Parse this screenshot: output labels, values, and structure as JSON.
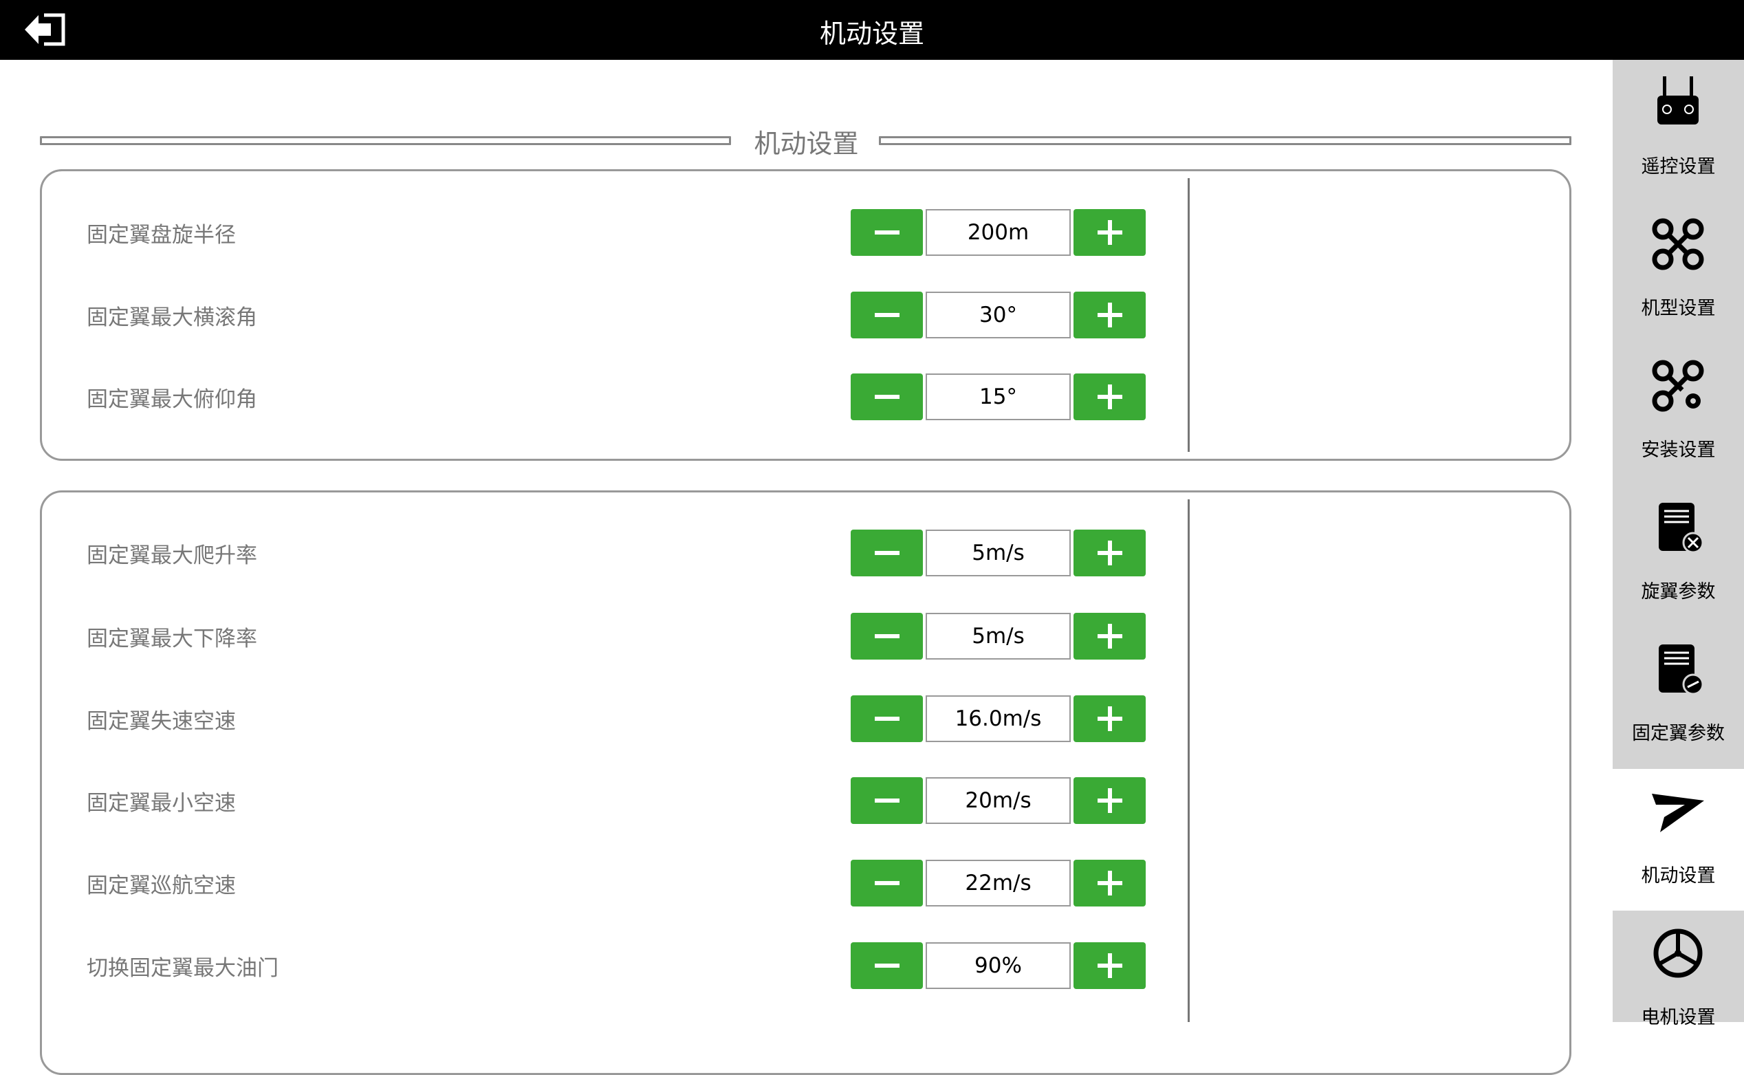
{
  "header": {
    "title": "机动设置",
    "back_icon": "exit-arrow-icon"
  },
  "section": {
    "title": "机动设置"
  },
  "colors": {
    "accent": "#3aaa35",
    "sidebar_bg": "#d3d3d3",
    "header_bg": "#000000"
  },
  "group1": [
    {
      "label": "固定翼盘旋半径",
      "value": "200m"
    },
    {
      "label": "固定翼最大横滚角",
      "value": "30°"
    },
    {
      "label": "固定翼最大俯仰角",
      "value": "15°"
    }
  ],
  "group2": [
    {
      "label": "固定翼最大爬升率",
      "value": "5m/s"
    },
    {
      "label": "固定翼最大下降率",
      "value": "5m/s"
    },
    {
      "label": "固定翼失速空速",
      "value": "16.0m/s"
    },
    {
      "label": "固定翼最小空速",
      "value": "20m/s"
    },
    {
      "label": "固定翼巡航空速",
      "value": "22m/s"
    },
    {
      "label": "切换固定翼最大油门",
      "value": "90%"
    }
  ],
  "sidebar": {
    "items": [
      {
        "label": "遥控设置",
        "icon": "remote-controller-icon"
      },
      {
        "label": "机型设置",
        "icon": "drone-icon"
      },
      {
        "label": "安装设置",
        "icon": "drone-gear-icon"
      },
      {
        "label": "旋翼参数",
        "icon": "rotor-params-icon"
      },
      {
        "label": "固定翼参数",
        "icon": "fixed-wing-params-icon"
      },
      {
        "label": "机动设置",
        "icon": "paper-plane-icon",
        "active": true
      },
      {
        "label": "电机设置",
        "icon": "propeller-icon"
      }
    ]
  }
}
